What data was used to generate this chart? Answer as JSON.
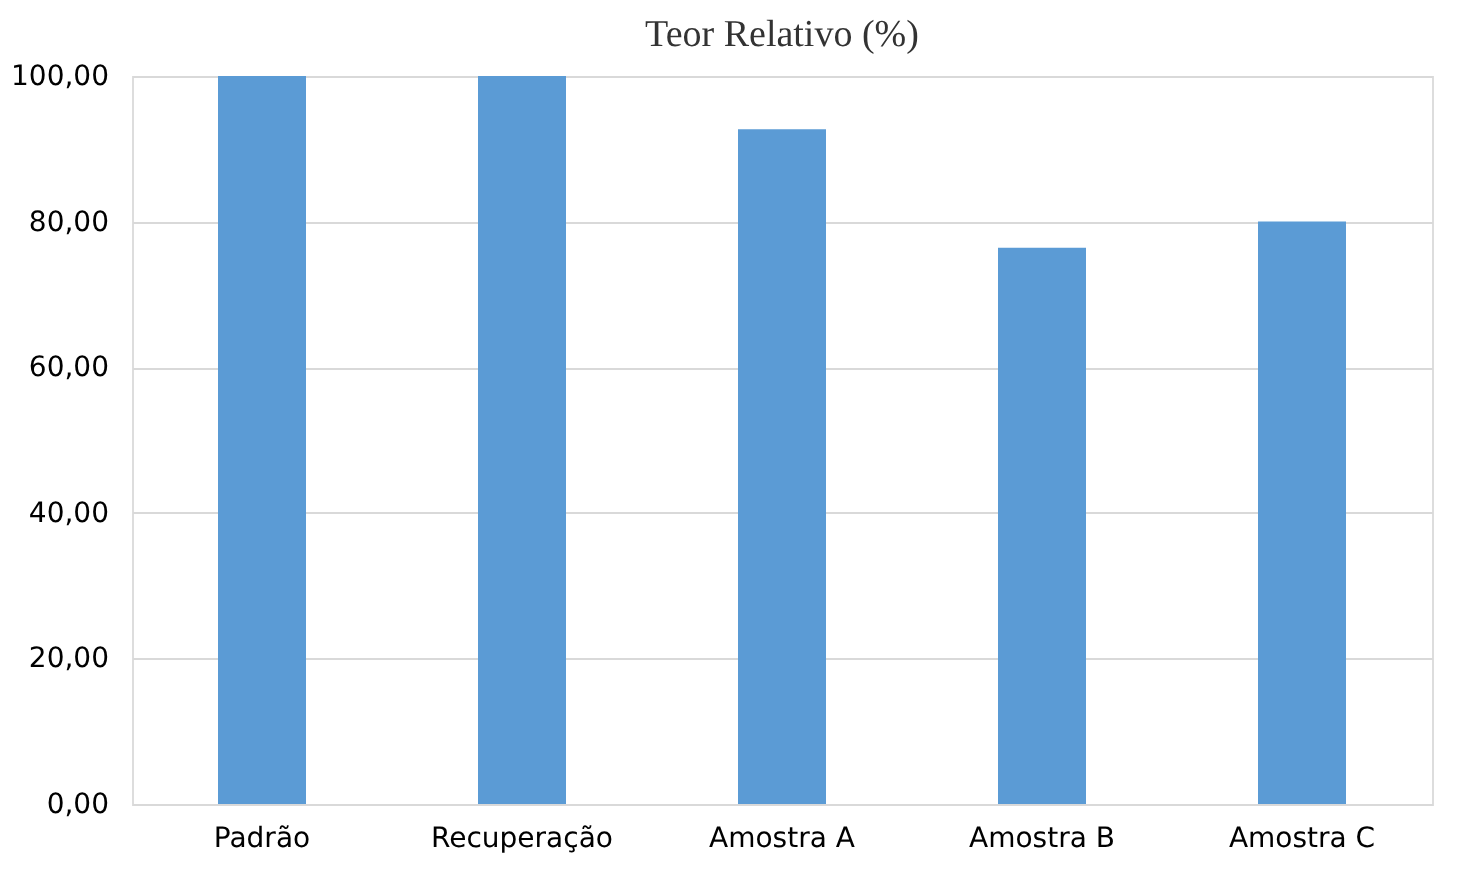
{
  "chart_data": {
    "type": "bar",
    "title": "Teor Relativo (%)",
    "categories": [
      "Padrão",
      "Recuperação",
      "Amostra A",
      "Amostra B",
      "Amostra C"
    ],
    "values": [
      100,
      100,
      92.7,
      76.4,
      80.0
    ],
    "color": "#5b9bd5",
    "ylim": [
      0,
      100
    ],
    "yticks": [
      {
        "value": 0,
        "label": "0,00"
      },
      {
        "value": 20,
        "label": "20,00"
      },
      {
        "value": 40,
        "label": "40,00"
      },
      {
        "value": 60,
        "label": "60,00"
      },
      {
        "value": 80,
        "label": "80,00"
      },
      {
        "value": 100,
        "label": "100,00"
      }
    ],
    "grid": "y"
  }
}
